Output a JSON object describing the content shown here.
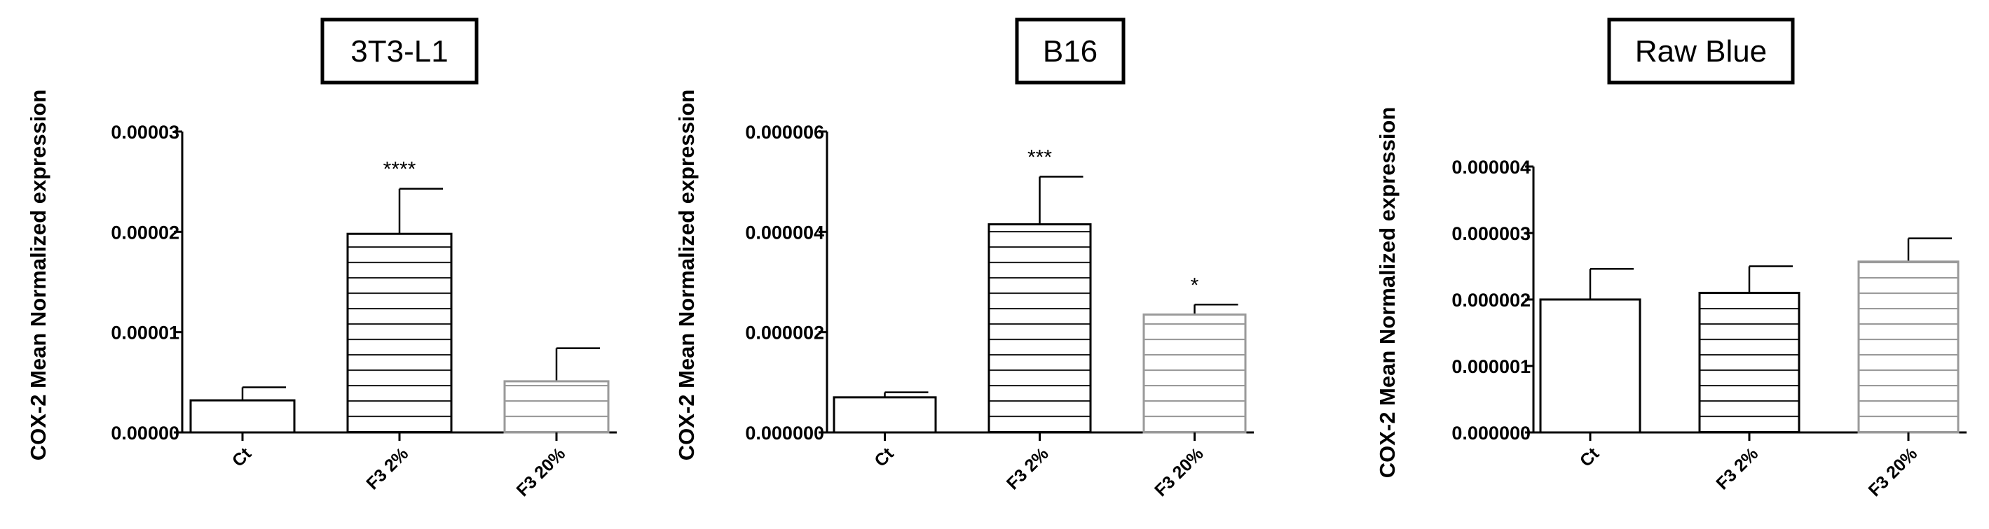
{
  "chart_data": [
    {
      "type": "bar",
      "title": "3T3-L1",
      "ylabel": "COX-2 Mean Normalized expression",
      "categories": [
        "Ct",
        "F3 2%",
        "F3 20%"
      ],
      "values": [
        3.2e-06,
        1.98e-05,
        5.1e-06
      ],
      "errors": [
        1.3e-06,
        4.5e-06,
        3.3e-06
      ],
      "significance": [
        "",
        "****",
        ""
      ],
      "ylim": [
        0,
        3e-05
      ],
      "yticks": [
        "0.00000",
        "0.00001",
        "0.00002",
        "0.00003"
      ],
      "ytick_values": [
        0,
        1e-05,
        2e-05,
        3e-05
      ]
    },
    {
      "type": "bar",
      "title": "B16",
      "ylabel": "COX-2 Mean Normalized expression",
      "categories": [
        "Ct",
        "F3 2%",
        "F3 20%"
      ],
      "values": [
        7e-07,
        4.15e-06,
        2.35e-06
      ],
      "errors": [
        1e-07,
        9.5e-07,
        2e-07
      ],
      "significance": [
        "",
        "***",
        "*"
      ],
      "ylim": [
        0,
        6e-06
      ],
      "yticks": [
        "0.000000",
        "0.000002",
        "0.000004",
        "0.000006"
      ],
      "ytick_values": [
        0,
        2e-06,
        4e-06,
        6e-06
      ]
    },
    {
      "type": "bar",
      "title": "Raw Blue",
      "ylabel": "COX-2 Mean Normalized expression",
      "categories": [
        "Ct",
        "F3 2%",
        "F3 20%"
      ],
      "values": [
        2e-06,
        2.1e-06,
        2.57e-06
      ],
      "errors": [
        4.6e-07,
        4e-07,
        3.5e-07
      ],
      "significance": [
        "",
        "",
        ""
      ],
      "ylim": [
        0,
        4e-06
      ],
      "yticks": [
        "0.000000",
        "0.000001",
        "0.000002",
        "0.000003",
        "0.000004"
      ],
      "ytick_values": [
        0,
        1e-06,
        2e-06,
        3e-06,
        4e-06
      ]
    }
  ],
  "bar_styles": [
    "plain",
    "dark-stripes",
    "light-stripes"
  ],
  "colors": {
    "axis": "#000000",
    "dark_stripe": "#222222",
    "light_stripe": "#9a9a9a",
    "bar_fill": "#ffffff"
  }
}
